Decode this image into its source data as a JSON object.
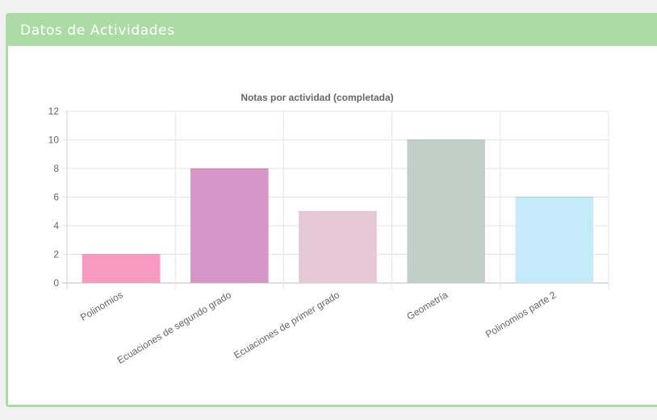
{
  "panel": {
    "title": "Datos de Actividades"
  },
  "chart_data": {
    "type": "bar",
    "title": "Notas por actividad (completada)",
    "xlabel": "",
    "ylabel": "",
    "ylim": [
      0,
      12
    ],
    "yticks": [
      "0",
      "2",
      "4",
      "6",
      "8",
      "10",
      "12"
    ],
    "grid": true,
    "legend": "none",
    "categories": [
      "Polinomios",
      "Ecuaciones de segundo grado",
      "Ecuaciones de primer grado",
      "Geometría",
      "Polinomios parte 2"
    ],
    "values": [
      2,
      8,
      5,
      10,
      6
    ],
    "colors": [
      "#f799c0",
      "#d696c8",
      "#e6c8d7",
      "#c0d0c9",
      "#c5eaf9"
    ]
  }
}
